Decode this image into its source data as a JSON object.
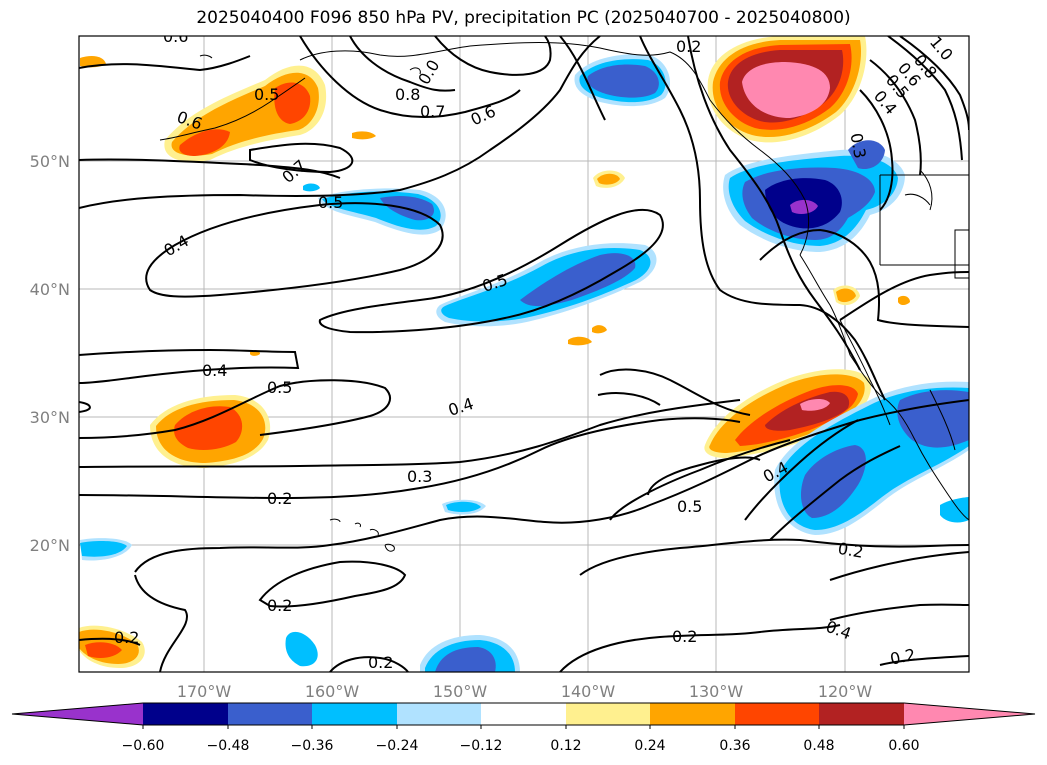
{
  "title": "2025040400 F096 850 hPa PV, precipitation PC (2025040700 - 2025040800)",
  "map": {
    "lat_labels": [
      "50°N",
      "40°N",
      "30°N",
      "20°N"
    ],
    "lon_labels": [
      "170°W",
      "160°W",
      "150°W",
      "140°W",
      "130°W",
      "120°W"
    ],
    "contour_labels": [
      "0.6",
      "0.5",
      "0.6",
      "0.7",
      "0.5",
      "0.4",
      "0.8",
      "0.7",
      "0.6",
      "0.5",
      "0.4",
      "0.5",
      "0.4",
      "0.3",
      "0.2",
      "0.2",
      "0.2",
      "0.2",
      "0.5",
      "0.4",
      "0.2",
      "0.4",
      "0.2",
      "0.2",
      "0.3",
      "0.4",
      "0.5",
      "0.6",
      "0.8",
      "1.0",
      "0.2",
      "0.0"
    ]
  },
  "colorbar": {
    "ticks": [
      "−0.60",
      "−0.48",
      "−0.36",
      "−0.24",
      "−0.12",
      "0.12",
      "0.24",
      "0.36",
      "0.48",
      "0.60"
    ],
    "colors": [
      "#9932cc",
      "#00008b",
      "#3a5fcd",
      "#00bfff",
      "#b0e2ff",
      "#ffffff",
      "#fff08f",
      "#ffa500",
      "#ff4500",
      "#b22222",
      "#ff88b0",
      "#ff88b0"
    ]
  }
}
